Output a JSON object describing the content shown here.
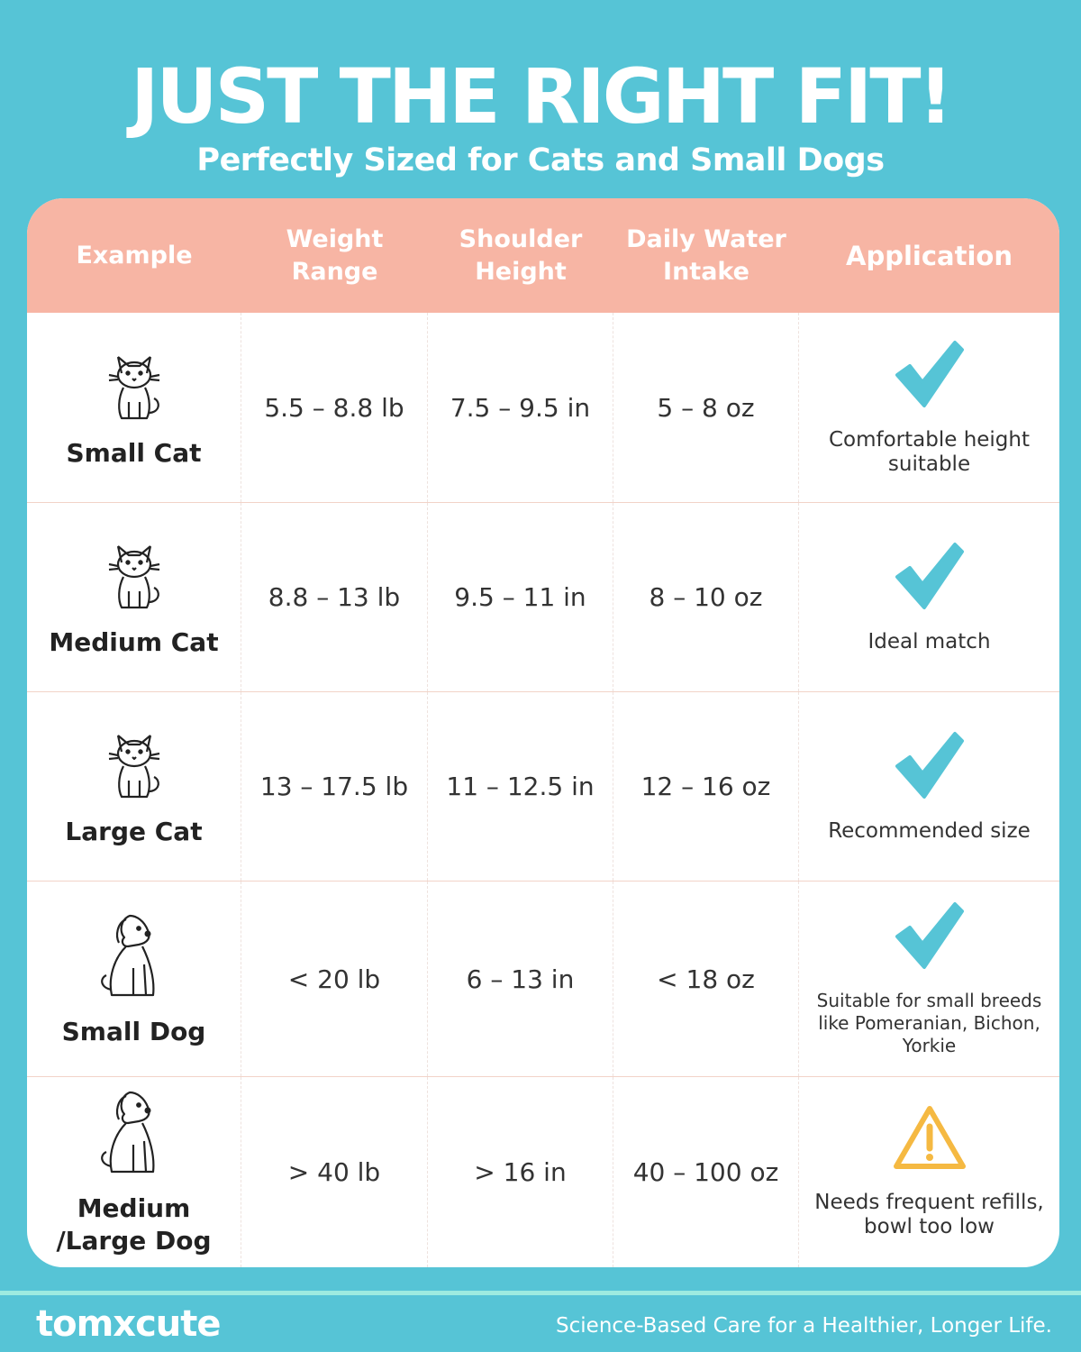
{
  "header": {
    "title": "JUST THE RIGHT FIT!",
    "subtitle": "Perfectly Sized for Cats and Small Dogs"
  },
  "table": {
    "columns": [
      "Example",
      "Weight Range",
      "Shoulder Height",
      "Daily Water Intake",
      "Application"
    ],
    "rows": [
      {
        "example": "Small Cat",
        "icon": "cat-sitting-icon",
        "weight": "5.5 – 8.8 lb",
        "height": "7.5 – 9.5 in",
        "water": "5 – 8 oz",
        "status_icon": "checkmark-icon",
        "application": "Comfortable height suitable"
      },
      {
        "example": "Medium Cat",
        "icon": "cat-icon",
        "weight": "8.8 – 13 lb",
        "height": "9.5 – 11 in",
        "water": "8 – 10 oz",
        "status_icon": "checkmark-icon",
        "application": "Ideal match"
      },
      {
        "example": "Large Cat",
        "icon": "cat-standing-icon",
        "weight": "13 – 17.5 lb",
        "height": "11 – 12.5 in",
        "water": "12 – 16 oz",
        "status_icon": "checkmark-icon",
        "application": "Recommended size"
      },
      {
        "example": "Small Dog",
        "icon": "small-dog-icon",
        "weight": "< 20 lb",
        "height": "6 – 13 in",
        "water": "< 18 oz",
        "status_icon": "checkmark-icon",
        "application": "Suitable for small breeds like Pomeranian, Bichon, Yorkie"
      },
      {
        "example": "Medium /Large Dog",
        "icon": "large-dog-icon",
        "weight": "> 40 lb",
        "height": "> 16 in",
        "water": "40 – 100 oz",
        "status_icon": "warning-icon",
        "application": "Needs frequent refills, bowl too low"
      }
    ]
  },
  "footer": {
    "logo": "tomxcute",
    "tagline": "Science-Based Care for a Healthier, Longer Life."
  },
  "colors": {
    "background": "#56C4D6",
    "header_row": "#F7B5A4",
    "check": "#56C4D6",
    "warning": "#F5B942"
  }
}
